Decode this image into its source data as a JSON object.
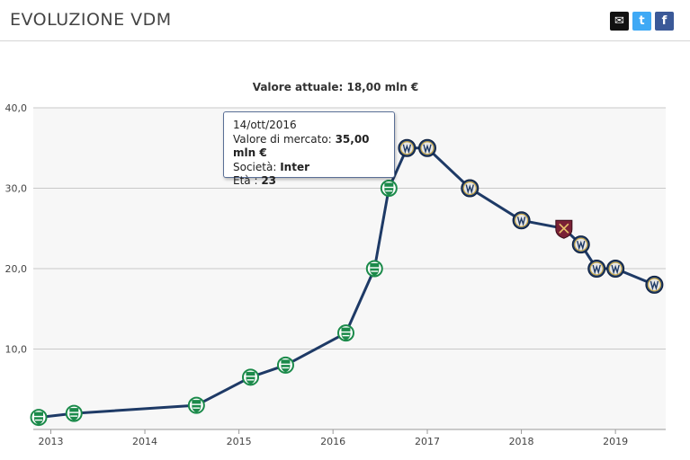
{
  "header": {
    "title": "EVOLUZIONE VDM",
    "share": [
      {
        "name": "mail-icon",
        "glyph": "✉"
      },
      {
        "name": "twitter-icon",
        "glyph": "t"
      },
      {
        "name": "facebook-icon",
        "glyph": "f"
      }
    ]
  },
  "chart_data": {
    "type": "line",
    "title": "",
    "subtitle": "Valore attuale: 18,00 mln €",
    "xlabel": "",
    "ylabel": "",
    "x_ticks": [
      "2013",
      "2014",
      "2015",
      "2016",
      "2017",
      "2018",
      "2019"
    ],
    "y_ticks": [
      "10,0",
      "20,0",
      "30,0",
      "40,0"
    ],
    "ylim": [
      0,
      40
    ],
    "xlim": [
      "2012-10-25",
      "2019-07-15"
    ],
    "grid": true,
    "line_color": "#1e3a66",
    "series": [
      {
        "points": [
          {
            "date": "2012-11-15",
            "value": 1.5,
            "club": "Sporting"
          },
          {
            "date": "2013-04-01",
            "value": 2.0,
            "club": "Sporting"
          },
          {
            "date": "2014-07-20",
            "value": 3.0,
            "club": "Sporting"
          },
          {
            "date": "2015-02-15",
            "value": 6.5,
            "club": "Sporting"
          },
          {
            "date": "2015-07-01",
            "value": 8.0,
            "club": "Sporting"
          },
          {
            "date": "2016-02-20",
            "value": 12.0,
            "club": "Sporting"
          },
          {
            "date": "2016-06-10",
            "value": 20.0,
            "club": "Sporting"
          },
          {
            "date": "2016-08-05",
            "value": 30.0,
            "club": "Sporting"
          },
          {
            "date": "2016-10-14",
            "value": 35.0,
            "club": "Inter"
          },
          {
            "date": "2017-01-01",
            "value": 35.0,
            "club": "Inter"
          },
          {
            "date": "2017-06-15",
            "value": 30.0,
            "club": "Inter"
          },
          {
            "date": "2018-01-01",
            "value": 26.0,
            "club": "Inter"
          },
          {
            "date": "2018-06-15",
            "value": 25.0,
            "club": "West Ham"
          },
          {
            "date": "2018-08-20",
            "value": 23.0,
            "club": "Inter"
          },
          {
            "date": "2018-10-20",
            "value": 20.0,
            "club": "Inter"
          },
          {
            "date": "2019-01-01",
            "value": 20.0,
            "club": "Inter"
          },
          {
            "date": "2019-06-01",
            "value": 18.0,
            "club": "Inter"
          }
        ]
      }
    ],
    "club_colors": {
      "Sporting": "#1b8a4a",
      "Inter": "#1e3a66",
      "West Ham": "#7a2135"
    }
  },
  "tooltip": {
    "date": "14/ott/2016",
    "value_label": "Valore di mercato:",
    "value": "35,00 mln €",
    "club_label": "Società:",
    "club": "Inter",
    "age_label": "Età :",
    "age": "23"
  }
}
